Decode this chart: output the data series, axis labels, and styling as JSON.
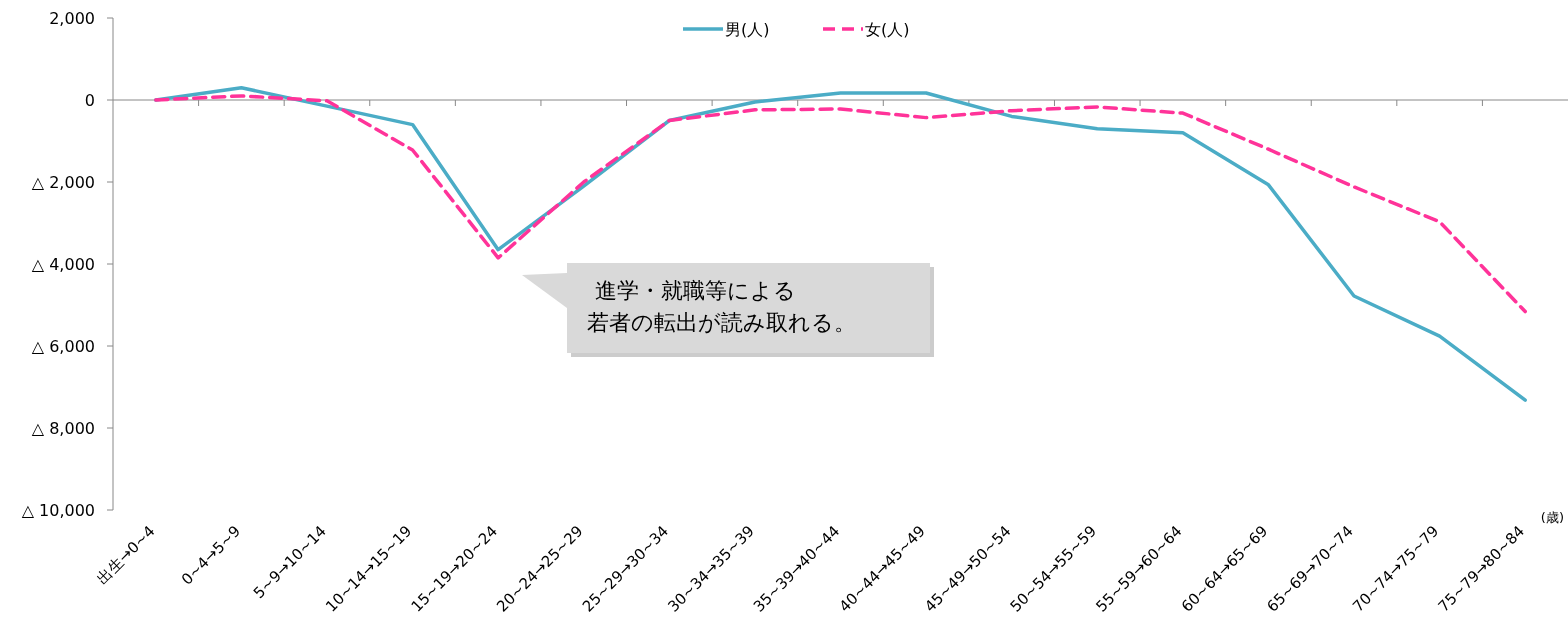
{
  "chart_data": {
    "type": "line",
    "categories": [
      "出生→0~4",
      "0~4→5~9",
      "5~9→10~14",
      "10~14→15~19",
      "15~19→20~24",
      "20~24→25~29",
      "25~29→30~34",
      "30~34→35~39",
      "35~39→40~44",
      "40~44→45~49",
      "45~49→50~54",
      "50~54→55~59",
      "55~59→60~64",
      "60~64→65~69",
      "65~69→70~74",
      "70~74→75~79",
      "75~79→80~84"
    ],
    "series": [
      {
        "name": "男(人)",
        "color": "#4bacc6",
        "line_style": "solid",
        "values": [
          0,
          300,
          -150,
          -600,
          -3650,
          -2100,
          -500,
          -50,
          170,
          170,
          -400,
          -700,
          -800,
          -2070,
          -4780,
          -5760,
          -7320
        ]
      },
      {
        "name": "女(人)",
        "color": "#ff3399",
        "line_style": "dashed",
        "values": [
          0,
          100,
          -20,
          -1220,
          -3850,
          -2000,
          -500,
          -240,
          -220,
          -430,
          -260,
          -170,
          -320,
          -1200,
          -2120,
          -2970,
          -5160
        ]
      }
    ],
    "xlabel": "(歳)",
    "ylim": [
      -10000,
      2000
    ],
    "yticks": [
      {
        "value": -10000,
        "label": "△ 10,000"
      },
      {
        "value": -8000,
        "label": "△ 8,000"
      },
      {
        "value": -6000,
        "label": "△ 6,000"
      },
      {
        "value": -4000,
        "label": "△ 4,000"
      },
      {
        "value": -2000,
        "label": "△ 2,000"
      },
      0,
      {
        "value": 2000,
        "label": "2,000"
      }
    ],
    "annotations": [
      "進学・就職等による",
      "若者の転出が読み取れる。"
    ],
    "legend": "top",
    "marker": "none"
  }
}
